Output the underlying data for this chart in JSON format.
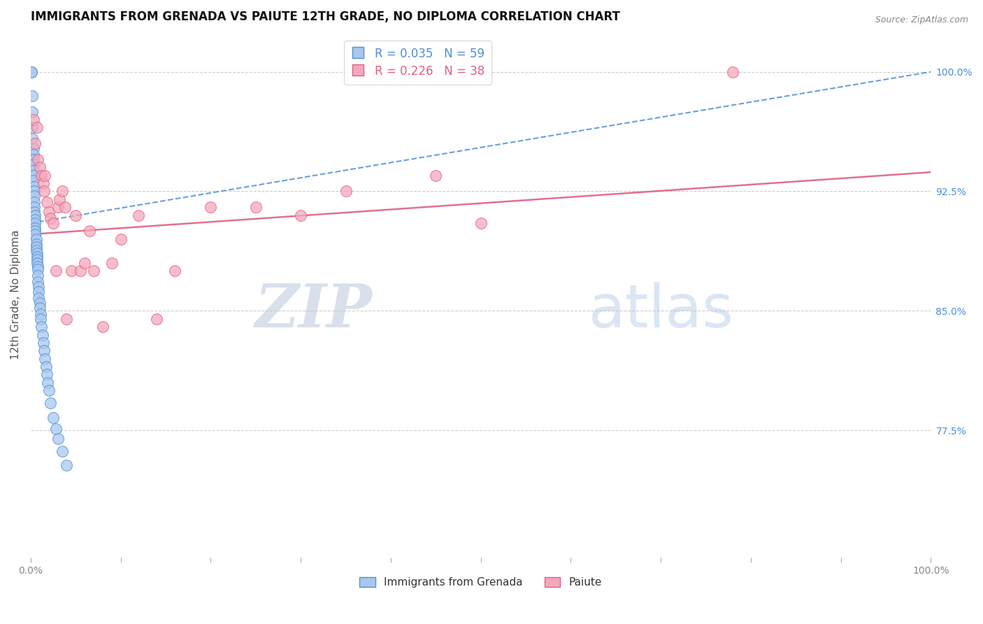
{
  "title": "IMMIGRANTS FROM GRENADA VS PAIUTE 12TH GRADE, NO DIPLOMA CORRELATION CHART",
  "source": "Source: ZipAtlas.com",
  "ylabel": "12th Grade, No Diploma",
  "legend_labels": [
    "Immigrants from Grenada",
    "Paiute"
  ],
  "R_grenada": 0.035,
  "N_grenada": 59,
  "R_paiute": 0.226,
  "N_paiute": 38,
  "color_grenada": "#a8c8f0",
  "color_paiute": "#f4a8bc",
  "color_grenada_line": "#5090d0",
  "color_paiute_line": "#e06080",
  "xlim": [
    0.0,
    1.0
  ],
  "ylim": [
    0.695,
    1.025
  ],
  "yticks_right": [
    0.775,
    0.85,
    0.925,
    1.0
  ],
  "ytick_right_labels": [
    "77.5%",
    "85.0%",
    "92.5%",
    "100.0%"
  ],
  "xticks": [
    0.0,
    0.1,
    0.2,
    0.3,
    0.4,
    0.5,
    0.6,
    0.7,
    0.8,
    0.9,
    1.0
  ],
  "xtick_labels": [
    "0.0%",
    "",
    "",
    "",
    "",
    "",
    "",
    "",
    "",
    "",
    "100.0%"
  ],
  "watermark_zip": "ZIP",
  "watermark_atlas": "atlas",
  "grenada_x": [
    0.001,
    0.001,
    0.002,
    0.002,
    0.002,
    0.002,
    0.003,
    0.003,
    0.003,
    0.003,
    0.003,
    0.003,
    0.003,
    0.004,
    0.004,
    0.004,
    0.004,
    0.004,
    0.004,
    0.005,
    0.005,
    0.005,
    0.005,
    0.005,
    0.005,
    0.006,
    0.006,
    0.006,
    0.006,
    0.007,
    0.007,
    0.007,
    0.007,
    0.008,
    0.008,
    0.008,
    0.008,
    0.009,
    0.009,
    0.009,
    0.01,
    0.01,
    0.011,
    0.011,
    0.012,
    0.013,
    0.014,
    0.015,
    0.016,
    0.017,
    0.018,
    0.019,
    0.02,
    0.022,
    0.025,
    0.028,
    0.03,
    0.035,
    0.04
  ],
  "grenada_y": [
    1.0,
    1.0,
    0.985,
    0.975,
    0.965,
    0.958,
    0.952,
    0.948,
    0.945,
    0.942,
    0.938,
    0.935,
    0.932,
    0.928,
    0.925,
    0.922,
    0.918,
    0.915,
    0.912,
    0.91,
    0.907,
    0.905,
    0.902,
    0.9,
    0.898,
    0.895,
    0.892,
    0.89,
    0.888,
    0.886,
    0.884,
    0.882,
    0.88,
    0.878,
    0.876,
    0.872,
    0.868,
    0.865,
    0.862,
    0.858,
    0.855,
    0.852,
    0.848,
    0.845,
    0.84,
    0.835,
    0.83,
    0.825,
    0.82,
    0.815,
    0.81,
    0.805,
    0.8,
    0.792,
    0.783,
    0.776,
    0.77,
    0.762,
    0.753
  ],
  "paiute_x": [
    0.003,
    0.005,
    0.007,
    0.008,
    0.01,
    0.012,
    0.014,
    0.015,
    0.016,
    0.018,
    0.02,
    0.022,
    0.025,
    0.028,
    0.03,
    0.032,
    0.035,
    0.038,
    0.04,
    0.045,
    0.05,
    0.055,
    0.06,
    0.065,
    0.07,
    0.08,
    0.09,
    0.1,
    0.12,
    0.14,
    0.16,
    0.2,
    0.25,
    0.3,
    0.35,
    0.45,
    0.5,
    0.78
  ],
  "paiute_y": [
    0.97,
    0.955,
    0.965,
    0.945,
    0.94,
    0.935,
    0.93,
    0.925,
    0.935,
    0.918,
    0.912,
    0.908,
    0.905,
    0.875,
    0.915,
    0.92,
    0.925,
    0.915,
    0.845,
    0.875,
    0.91,
    0.875,
    0.88,
    0.9,
    0.875,
    0.84,
    0.88,
    0.895,
    0.91,
    0.845,
    0.875,
    0.915,
    0.915,
    0.91,
    0.925,
    0.935,
    0.905,
    1.0
  ],
  "trendline_grenada_start_x": 0.0,
  "trendline_grenada_start_y": 0.905,
  "trendline_grenada_end_x": 1.0,
  "trendline_grenada_end_y": 1.0,
  "trendline_paiute_start_x": 0.0,
  "trendline_paiute_start_y": 0.898,
  "trendline_paiute_end_x": 1.0,
  "trendline_paiute_end_y": 0.937
}
